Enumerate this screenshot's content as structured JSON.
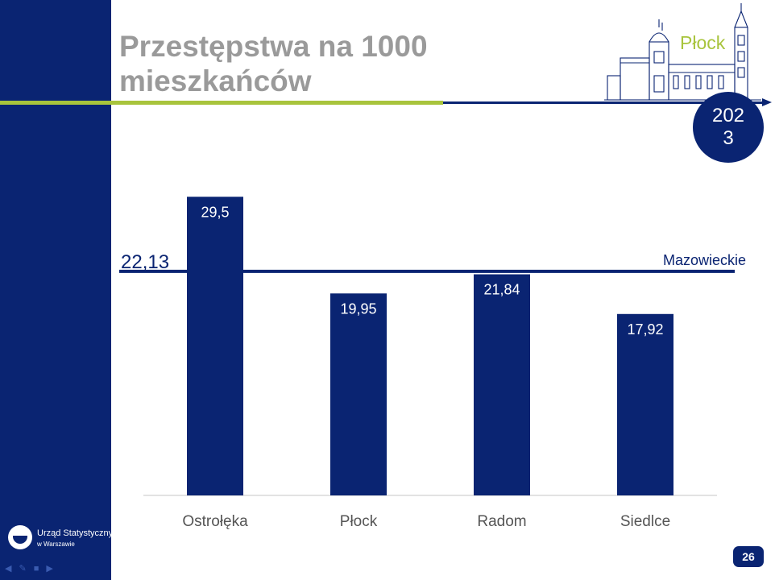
{
  "slide": {
    "title_line1": "Przestępstwa na 1000",
    "title_line2": "mieszkańców",
    "city": "Płock",
    "year": "2023",
    "page_number": "26",
    "logo_line1": "Urząd Statystyczny",
    "logo_line2": "w Warszawie",
    "nav_icons": [
      "arrow-left-icon",
      "pencil-icon",
      "screen-icon",
      "arrow-right-icon"
    ]
  },
  "colors": {
    "primary": "#0a2472",
    "accent": "#a8c43c",
    "title": "#9a9a9a"
  },
  "chart_data": {
    "type": "bar",
    "categories": [
      "Ostrołęka",
      "Płock",
      "Radom",
      "Siedlce"
    ],
    "values": [
      29.5,
      19.95,
      21.84,
      17.92
    ],
    "value_labels": [
      "29,5",
      "19,95",
      "21,84",
      "17,92"
    ],
    "ylim": [
      0,
      37
    ],
    "reference_line": {
      "value": 22.13,
      "value_label": "22,13",
      "label": "Mazowieckie"
    },
    "grid": false,
    "bar_color": "#0a2472"
  }
}
